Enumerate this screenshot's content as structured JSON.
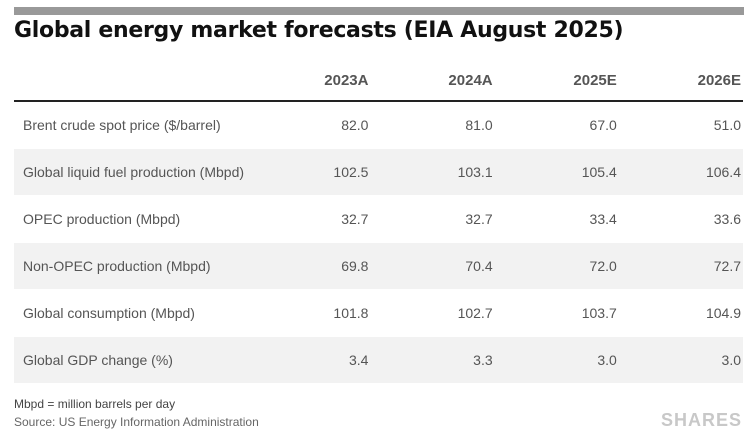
{
  "title": "Global energy market forecasts (EIA August 2025)",
  "table": {
    "columns": [
      "",
      "2023A",
      "2024A",
      "2025E",
      "2026E"
    ],
    "rows": [
      {
        "label": "Brent crude spot price ($/barrel)",
        "values": [
          "82.0",
          "81.0",
          "67.0",
          "51.0"
        ]
      },
      {
        "label": "Global liquid fuel production (Mbpd)",
        "values": [
          "102.5",
          "103.1",
          "105.4",
          "106.4"
        ]
      },
      {
        "label": "OPEC production (Mbpd)",
        "values": [
          "32.7",
          "32.7",
          "33.4",
          "33.6"
        ]
      },
      {
        "label": "Non-OPEC production (Mbpd)",
        "values": [
          "69.8",
          "70.4",
          "72.0",
          "72.7"
        ]
      },
      {
        "label": "Global consumption (Mbpd)",
        "values": [
          "101.8",
          "102.7",
          "103.7",
          "104.9"
        ]
      },
      {
        "label": "Global GDP change (%)",
        "values": [
          "3.4",
          "3.3",
          "3.0",
          "3.0"
        ]
      }
    ]
  },
  "footnote": "Mbpd = million barrels per day",
  "source": "Source: US Energy Information Administration",
  "brand": "SHARES"
}
